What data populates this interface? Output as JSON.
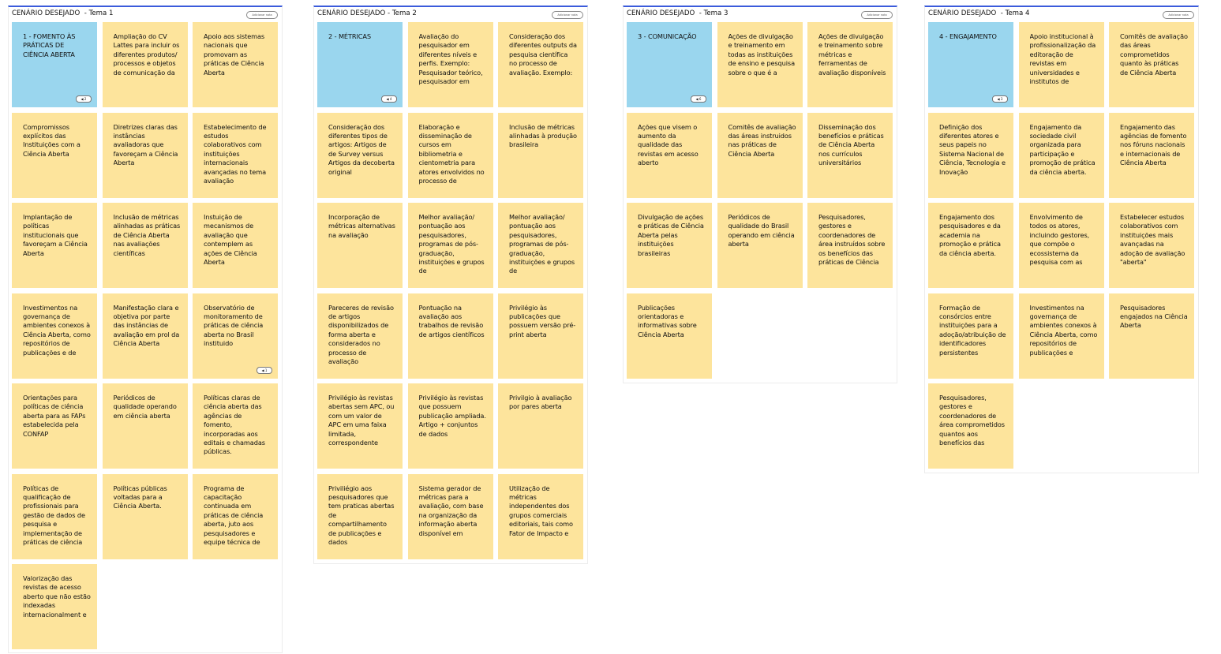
{
  "add_note_label": "Adicionar nota",
  "colors": {
    "accent": "#3b5bdb",
    "header_card": "#9ad6ee",
    "note_card": "#fde49c"
  },
  "panels": [
    {
      "title": "CENÁRIO DESEJADO  - Tema 1",
      "cards": [
        {
          "text": "1 - FOMENTO ÀS PRÁTICAS DE CIÊNCIA ABERTA",
          "header": true,
          "votes": "2"
        },
        {
          "text": "Ampliação do CV Lattes para incluir os diferentes produtos/ processos e objetos de comunicação da"
        },
        {
          "text": "Apoio aos sistemas nacionais que promovam as práticas de Ciência Aberta"
        },
        {
          "text": "Compromissos explícitos das Instituições com a Ciência Aberta"
        },
        {
          "text": "Diretrizes claras das instâncias avaliadoras que favoreçam a Ciência Aberta"
        },
        {
          "text": "Estabelecimento de estudos colaborativos com instituições internacionais avançadas no tema avaliação"
        },
        {
          "text": "Implantação de políticas institucionais que favoreçam a Ciência Aberta"
        },
        {
          "text": "Inclusão de métricas alinhadas as práticas de Ciência Aberta nas avaliações científicas"
        },
        {
          "text": "Instuição de mecanismos de avaliação que contemplem as ações de Ciência Aberta"
        },
        {
          "text": "Investimentos na governança de ambientes conexos à Ciência Aberta, como repositórios de publicações e de"
        },
        {
          "text": "Manifestação clara e objetiva por parte das instâncias de avaliação em prol da Ciência Aberta"
        },
        {
          "text": "Observatório de monitoramento de práticas de ciência aberta no Brasil instituido",
          "votes": "1"
        },
        {
          "text": "Orientações para políticas de ciência aberta para as FAPs estabelecida pela CONFAP"
        },
        {
          "text": "Periódicos de qualidade operando em ciência aberta"
        },
        {
          "text": "Políticas claras de ciência aberta das agências de fomento, incorporadas aos editais e chamadas públicas."
        },
        {
          "text": "Políticas de qualificação de profissionais para gestão de dados de pesquisa e implementação de práticas de ciência"
        },
        {
          "text": "Políticas públicas voltadas para a Ciência Aberta."
        },
        {
          "text": "Programa de capacitação continuada em práticas de ciência aberta, juto aos pesquisadores e equipe técnica de"
        },
        {
          "text": "Valorização das revistas de acesso aberto que não estão indexadas internacionalment e"
        }
      ]
    },
    {
      "title": "CENÁRIO DESEJADO - Tema 2",
      "cards": [
        {
          "text": "2 - MÉTRICAS",
          "header": true,
          "votes": "4"
        },
        {
          "text": "Avaliação do pesquisador em diferentes níveis e perfis. Exemplo: Pesquisador teórico, pesquisador em"
        },
        {
          "text": "Consideração dos diferentes outputs da pesquisa científica no processo de avaliação. Exemplo:"
        },
        {
          "text": "Consideração dos diferentes tipos de artigos: Artigos de de Survey versus Artigos da decoberta original"
        },
        {
          "text": "Elaboração e disseminação de cursos em bibliometria e cientometria para atores envolvidos no processo de"
        },
        {
          "text": "Inclusão de métricas alinhadas à produção brasileira"
        },
        {
          "text": "Incorporação de métricas alternativas na avaliação"
        },
        {
          "text": "Melhor avaliação/ pontuação aos pesquisadores, programas de pós-graduação, instituições e grupos de"
        },
        {
          "text": "Melhor avaliação/ pontuação aos pesquisadores, programas de pós-graduação, instituições e grupos de"
        },
        {
          "text": "Pareceres de revisão de artigos disponibilizados de forma aberta e considerados no processo de avaliação"
        },
        {
          "text": "Pontuação na avaliação aos trabalhos de revisão de artigos científicos"
        },
        {
          "text": "Privilégio às publicações que possuem versão pré-print aberta"
        },
        {
          "text": "Privilégio às revistas abertas sem APC, ou com um valor de APC em uma faixa limitada, correspondente"
        },
        {
          "text": "Privilégio às revistas que possuem publicação ampliada. Artigo + conjuntos de dados"
        },
        {
          "text": "Privilgio à avaliação por pares aberta"
        },
        {
          "text": "Priviliégio aos pesquisadores que tem praticas abertas de compartilhamento de publicações e dados"
        },
        {
          "text": "Sistema gerador de métricas para a avaliação, com base na organização da informação aberta disponível em"
        },
        {
          "text": "Utilização de métricas independentes dos grupos comerciais editoriais, tais como Fator de Impacto e"
        }
      ]
    },
    {
      "title": "CENÁRIO DESEJADO  - Tema 3",
      "cards": [
        {
          "text": "3 - COMUNICAÇÃO",
          "header": true,
          "votes": "6"
        },
        {
          "text": "Ações de divulgação e treinamento em todas as instituições de ensino e pesquisa sobre o que é a"
        },
        {
          "text": "Ações de divulgação e treinamento sobre métricas e ferramentas de avaliação disponíveis"
        },
        {
          "text": "Ações que visem o aumento da qualidade das revistas em acesso aberto"
        },
        {
          "text": "Comitês de avaliação das áreas instruidos nas práticas de Ciência Aberta"
        },
        {
          "text": "Disseminação dos benefícios e práticas de Ciência Aberta nos currículos universitários"
        },
        {
          "text": "Divulgação de ações e práticas de Ciência Aberta pelas instituições brasileiras"
        },
        {
          "text": "Periódicos de qualidade do Brasil operando em ciência aberta"
        },
        {
          "text": "Pesquisadores, gestores e coordenadores de área instruídos sobre os benefícios das práticas de Ciência"
        },
        {
          "text": "Publicações orientadoras e informativas sobre Ciência Aberta"
        }
      ]
    },
    {
      "title": "CENÁRIO DESEJADO  - Tema 4",
      "cards": [
        {
          "text": "4 - ENGAJAMENTO",
          "header": true,
          "votes": "3"
        },
        {
          "text": "Apoio institucional à profissionalização da editoração de revistas em universidades e institutos de"
        },
        {
          "text": "Comitês de avaliação das áreas comprometidos quanto às práticas de Ciência Aberta"
        },
        {
          "text": "Definição dos diferentes atores e seus papeis no Sistema Nacional de Ciência, Tecnologia e Inovação"
        },
        {
          "text": "Engajamento da sociedade civil organizada para participação e promoção de prática da ciência aberta."
        },
        {
          "text": "Engajamento das agências de fomento nos fóruns nacionais e internacionais de Ciência Aberta"
        },
        {
          "text": "Engajamento dos pesquisadores e da academia na promoção e prática da ciência aberta."
        },
        {
          "text": "Envolvimento de todos os atores, incluindo gestores, que compõe o ecossistema da pesquisa com as"
        },
        {
          "text": "Estabelecer estudos colaborativos com instituições mais avançadas na adoção de avaliação \"aberta\""
        },
        {
          "text": "Formação de consórcios entre instituições para a adoção/atribuição de identificadores persistentes"
        },
        {
          "text": "Investimentos na governança de ambientes conexos à Ciência Aberta, como repositórios de publicações e"
        },
        {
          "text": "Pesquisadores engajados na Ciência Aberta"
        },
        {
          "text": "Pesquisadores, gestores e coordenadores de área comprometidos quantos aos benefícios das"
        }
      ]
    }
  ]
}
